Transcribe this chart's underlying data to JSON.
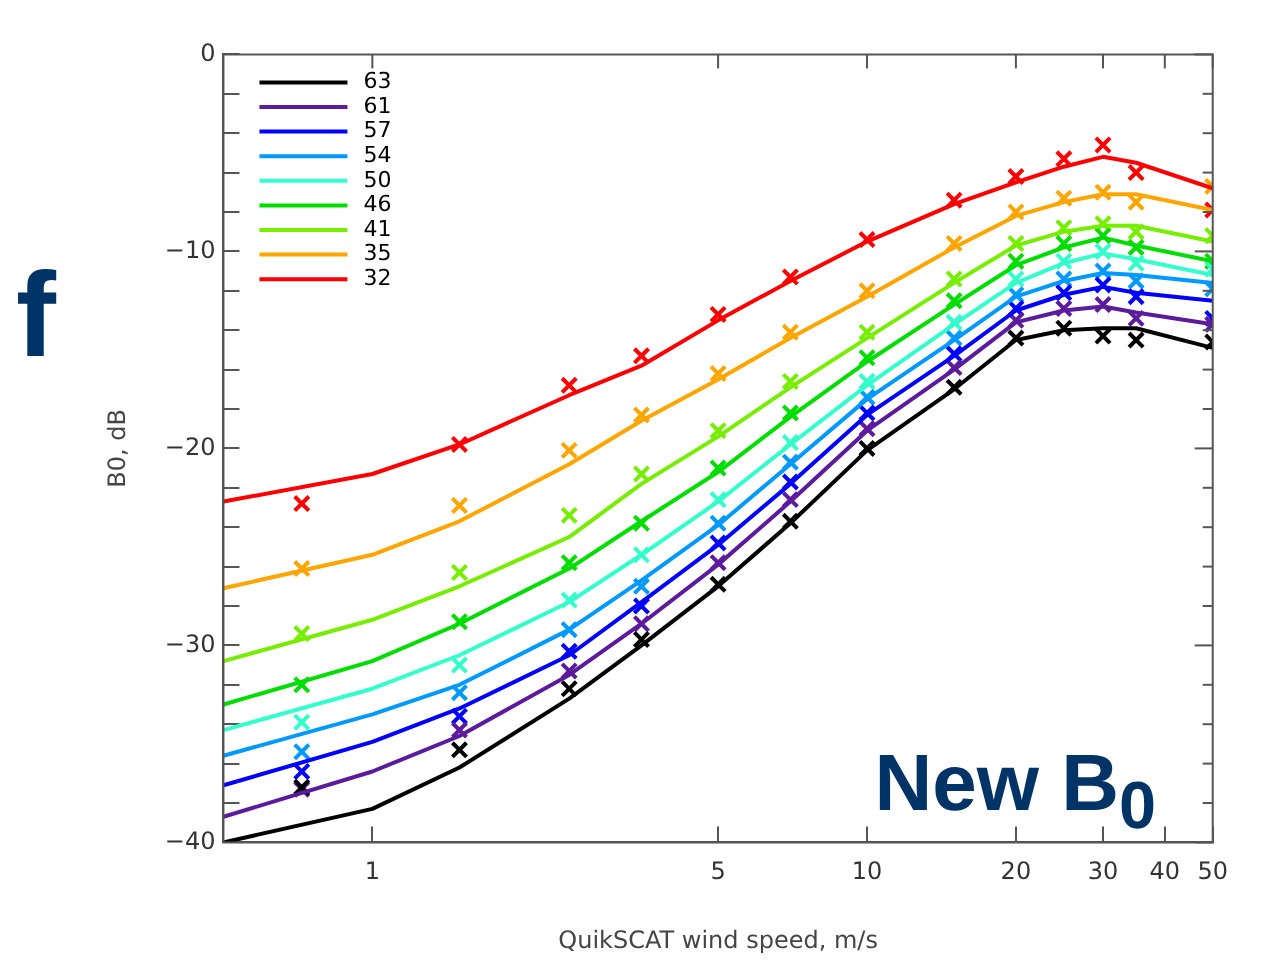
{
  "chart_data": {
    "type": "line",
    "xlabel": "QuikSCAT wind speed, m/s",
    "ylabel": "B0, dB",
    "annotations": [
      "New B$_{0}$",
      "f"
    ],
    "log": "x",
    "xlim": [
      0.5,
      50
    ],
    "xticks": [
      1,
      5,
      10,
      20,
      30,
      40,
      50
    ],
    "ylim": [
      -40,
      0
    ],
    "yticks": [
      -40,
      {
        "value": -38,
        "label": null
      },
      {
        "value": -36,
        "label": null
      },
      {
        "value": -34,
        "label": null
      },
      {
        "value": -32,
        "label": null
      },
      -30,
      {
        "value": -28,
        "label": null
      },
      {
        "value": -26,
        "label": null
      },
      {
        "value": -24,
        "label": null
      },
      {
        "value": -22,
        "label": null
      },
      -20,
      {
        "value": -18,
        "label": null
      },
      {
        "value": -16,
        "label": null
      },
      {
        "value": -14,
        "label": null
      },
      {
        "value": -12,
        "label": null
      },
      -10,
      {
        "value": -8,
        "label": null
      },
      {
        "value": -6,
        "label": null
      },
      {
        "value": -4,
        "label": null
      },
      {
        "value": -2,
        "label": null
      },
      0
    ],
    "grid": false,
    "legend": "top left",
    "series": [
      {
        "type": "line",
        "name": "63",
        "color": "#000000",
        "marker": "none",
        "x": [
          0.5,
          1,
          1.5,
          2.5,
          3.5,
          5,
          7,
          10,
          15,
          20,
          25,
          30,
          35,
          50
        ],
        "values": [
          -40,
          -38.3,
          -36.2,
          -32.7,
          -30.0,
          -27.0,
          -23.8,
          -20.1,
          -17.0,
          -14.5,
          -14.0,
          -13.9,
          -13.9,
          -14.9
        ]
      },
      {
        "type": "line",
        "name": "61",
        "color": "#5c1a9c",
        "marker": "none",
        "x": [
          0.5,
          1,
          1.5,
          2.5,
          3.5,
          5,
          7,
          10,
          15,
          20,
          25,
          30,
          35,
          50
        ],
        "values": [
          -38.7,
          -36.4,
          -34.6,
          -31.5,
          -28.9,
          -25.9,
          -22.7,
          -19.1,
          -16.0,
          -13.6,
          -13.0,
          -12.8,
          -13.1,
          -13.7
        ]
      },
      {
        "type": "line",
        "name": "57",
        "color": "#0000ff",
        "marker": "none",
        "x": [
          0.5,
          1,
          1.5,
          2.5,
          3.5,
          5,
          7,
          10,
          15,
          20,
          25,
          30,
          35,
          50
        ],
        "values": [
          -37.1,
          -34.9,
          -33.2,
          -30.5,
          -27.8,
          -24.9,
          -21.8,
          -18.3,
          -15.3,
          -13.0,
          -12.2,
          -11.8,
          -12.1,
          -12.5
        ]
      },
      {
        "type": "line",
        "name": "54",
        "color": "#0099ff",
        "marker": "none",
        "x": [
          0.5,
          1,
          1.5,
          2.5,
          3.5,
          5,
          7,
          10,
          15,
          20,
          25,
          30,
          35,
          50
        ],
        "values": [
          -35.6,
          -33.5,
          -32.0,
          -29.2,
          -26.7,
          -23.9,
          -20.8,
          -17.5,
          -14.5,
          -12.3,
          -11.5,
          -11.1,
          -11.2,
          -11.6
        ]
      },
      {
        "type": "line",
        "name": "50",
        "color": "#33ffcc",
        "marker": "none",
        "x": [
          0.5,
          1,
          1.5,
          2.5,
          3.5,
          5,
          7,
          10,
          15,
          20,
          25,
          30,
          35,
          50
        ],
        "values": [
          -34.3,
          -32.2,
          -30.5,
          -27.8,
          -25.4,
          -22.7,
          -19.8,
          -16.8,
          -13.7,
          -11.6,
          -10.6,
          -10.1,
          -10.4,
          -11.2
        ]
      },
      {
        "type": "line",
        "name": "46",
        "color": "#00dd00",
        "marker": "none",
        "x": [
          0.5,
          1,
          1.5,
          2.5,
          3.5,
          5,
          7,
          10,
          15,
          20,
          25,
          30,
          35,
          50
        ],
        "values": [
          -33.0,
          -30.8,
          -28.9,
          -26.1,
          -23.7,
          -21.2,
          -18.4,
          -15.6,
          -12.7,
          -10.7,
          -9.8,
          -9.3,
          -9.7,
          -10.5
        ]
      },
      {
        "type": "line",
        "name": "41",
        "color": "#77ee00",
        "marker": "none",
        "x": [
          0.5,
          1,
          1.5,
          2.5,
          3.5,
          5,
          7,
          10,
          15,
          20,
          25,
          30,
          35,
          50
        ],
        "values": [
          -30.8,
          -28.7,
          -27.0,
          -24.5,
          -21.8,
          -19.4,
          -16.9,
          -14.4,
          -11.6,
          -9.7,
          -9.0,
          -8.7,
          -8.7,
          -9.5
        ]
      },
      {
        "type": "line",
        "name": "35",
        "color": "#ffa500",
        "marker": "none",
        "x": [
          0.5,
          1,
          1.5,
          2.5,
          3.5,
          5,
          7,
          10,
          15,
          20,
          25,
          30,
          35,
          50
        ],
        "values": [
          -27.1,
          -25.4,
          -23.7,
          -20.8,
          -18.6,
          -16.5,
          -14.4,
          -12.3,
          -9.8,
          -8.2,
          -7.5,
          -7.1,
          -7.1,
          -7.9
        ]
      },
      {
        "type": "line",
        "name": "32",
        "color": "#ff0000",
        "marker": "none",
        "x": [
          0.5,
          1,
          1.5,
          2.5,
          3.5,
          5,
          7,
          10,
          15,
          20,
          25,
          30,
          35,
          50
        ],
        "values": [
          -22.7,
          -21.3,
          -19.8,
          -17.3,
          -15.8,
          -13.5,
          -11.5,
          -9.5,
          -7.6,
          -6.5,
          -5.7,
          -5.2,
          -5.5,
          -6.8
        ]
      },
      {
        "type": "scatter",
        "color": "#000000",
        "marker": "cross",
        "x": [
          0.72,
          1.5,
          2.5,
          3.5,
          5,
          7,
          10,
          15,
          20,
          25,
          30,
          35,
          50
        ],
        "values": [
          -37.2,
          -35.3,
          -32.2,
          -29.7,
          -26.9,
          -23.7,
          -20.0,
          -16.9,
          -14.4,
          -13.9,
          -14.3,
          -14.5,
          -14.6
        ]
      },
      {
        "type": "scatter",
        "color": "#5c1a9c",
        "marker": "cross",
        "x": [
          0.72,
          1.5,
          2.5,
          3.5,
          5,
          7,
          10,
          15,
          20,
          25,
          30,
          35,
          50
        ],
        "values": [
          -37.3,
          -34.3,
          -31.3,
          -28.9,
          -25.8,
          -22.6,
          -19.0,
          -15.9,
          -13.5,
          -12.9,
          -12.7,
          -13.4,
          -13.7
        ]
      },
      {
        "type": "scatter",
        "color": "#0000ff",
        "marker": "cross",
        "x": [
          0.72,
          1.5,
          2.5,
          3.5,
          5,
          7,
          10,
          15,
          20,
          25,
          30,
          35,
          50
        ],
        "values": [
          -36.4,
          -33.6,
          -30.3,
          -28.0,
          -24.8,
          -21.7,
          -18.2,
          -15.2,
          -12.9,
          -12.1,
          -11.7,
          -12.3,
          -13.4
        ]
      },
      {
        "type": "scatter",
        "color": "#0099ff",
        "marker": "cross",
        "x": [
          0.72,
          1.5,
          2.5,
          3.5,
          5,
          7,
          10,
          15,
          20,
          25,
          30,
          35,
          50
        ],
        "values": [
          -35.4,
          -32.4,
          -29.2,
          -27.0,
          -23.8,
          -20.7,
          -17.4,
          -14.4,
          -12.2,
          -11.4,
          -11.0,
          -11.5,
          -11.9
        ]
      },
      {
        "type": "scatter",
        "color": "#33ffcc",
        "marker": "cross",
        "x": [
          0.72,
          1.5,
          2.5,
          3.5,
          5,
          7,
          10,
          15,
          20,
          25,
          30,
          35,
          50
        ],
        "values": [
          -33.9,
          -31.0,
          -27.7,
          -25.4,
          -22.6,
          -19.7,
          -16.6,
          -13.6,
          -11.4,
          -10.5,
          -10.0,
          -10.6,
          -10.9
        ]
      },
      {
        "type": "scatter",
        "color": "#00dd00",
        "marker": "cross",
        "x": [
          0.72,
          1.5,
          2.5,
          3.5,
          5,
          7,
          10,
          15,
          20,
          25,
          30,
          35,
          50
        ],
        "values": [
          -32.0,
          -28.8,
          -25.8,
          -23.8,
          -21.0,
          -18.2,
          -15.4,
          -12.5,
          -10.5,
          -9.6,
          -9.2,
          -9.8,
          -10.5
        ]
      },
      {
        "type": "scatter",
        "color": "#77ee00",
        "marker": "cross",
        "x": [
          0.72,
          1.5,
          2.5,
          3.5,
          5,
          7,
          10,
          15,
          20,
          25,
          30,
          35,
          50
        ],
        "values": [
          -29.4,
          -26.3,
          -23.4,
          -21.3,
          -19.1,
          -16.6,
          -14.1,
          -11.4,
          -9.6,
          -8.8,
          -8.6,
          -9.0,
          -9.2
        ]
      },
      {
        "type": "scatter",
        "color": "#ffa500",
        "marker": "cross",
        "x": [
          0.72,
          1.5,
          2.5,
          3.5,
          5,
          7,
          10,
          15,
          20,
          25,
          30,
          35,
          50
        ],
        "values": [
          -26.1,
          -22.9,
          -20.1,
          -18.3,
          -16.2,
          -14.1,
          -12.0,
          -9.6,
          -8.0,
          -7.3,
          -7.0,
          -7.5,
          -6.7
        ]
      },
      {
        "type": "scatter",
        "color": "#ff0000",
        "marker": "cross",
        "x": [
          0.72,
          1.5,
          2.5,
          3.5,
          5,
          7,
          10,
          15,
          20,
          25,
          30,
          35,
          50
        ],
        "values": [
          -22.8,
          -19.8,
          -16.8,
          -15.3,
          -13.2,
          -11.3,
          -9.4,
          -7.4,
          -6.2,
          -5.3,
          -4.6,
          -6.0,
          -7.9
        ]
      }
    ]
  }
}
